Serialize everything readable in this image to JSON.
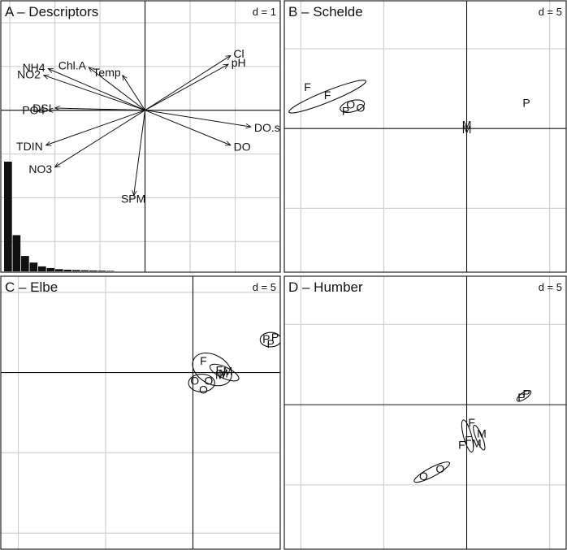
{
  "chart_data": [
    {
      "panel": "A",
      "type": "scatter",
      "title": "A – Descriptors",
      "scale_label": "d = 1",
      "xlim": [
        -3.2,
        3.0
      ],
      "ylim": [
        -3.7,
        2.5
      ],
      "grid": true,
      "vectors": [
        {
          "name": "Cl",
          "x": 1.9,
          "y": 1.25
        },
        {
          "name": "pH",
          "x": 1.85,
          "y": 1.05
        },
        {
          "name": "DO.sat",
          "x": 2.35,
          "y": -0.38
        },
        {
          "name": "DO",
          "x": 1.9,
          "y": -0.8
        },
        {
          "name": "SPM",
          "x": -0.25,
          "y": -1.95
        },
        {
          "name": "NO3",
          "x": -2.0,
          "y": -1.3
        },
        {
          "name": "TDIN",
          "x": -2.2,
          "y": -0.8
        },
        {
          "name": "PO4",
          "x": -2.15,
          "y": 0.0
        },
        {
          "name": "DSI",
          "x": -2.0,
          "y": 0.05
        },
        {
          "name": "NO2",
          "x": -2.25,
          "y": 0.8
        },
        {
          "name": "NH4",
          "x": -2.15,
          "y": 0.95
        },
        {
          "name": "Chl.A",
          "x": -1.25,
          "y": 0.98
        },
        {
          "name": "Temp",
          "x": -0.5,
          "y": 0.8
        }
      ],
      "eigenvalues": [
        1.0,
        0.33,
        0.14,
        0.08,
        0.045,
        0.03,
        0.02,
        0.015,
        0.012,
        0.01,
        0.008,
        0.006,
        0.004
      ]
    },
    {
      "panel": "B",
      "type": "scatter",
      "title": "B – Schelde",
      "scale_label": "d = 5",
      "xlim": [
        -11,
        6
      ],
      "ylim": [
        -9,
        8
      ],
      "grid": true,
      "points": [
        {
          "label": "F",
          "x": -9.6,
          "y": 2.6
        },
        {
          "label": "F",
          "x": -8.4,
          "y": 2.1
        },
        {
          "label": "O",
          "x": -7.0,
          "y": 1.5
        },
        {
          "label": "O",
          "x": -6.4,
          "y": 1.3
        },
        {
          "label": "P",
          "x": -7.3,
          "y": 1.1
        },
        {
          "label": "M",
          "x": 0.0,
          "y": 0.25
        },
        {
          "label": "M",
          "x": 0.0,
          "y": -0.05
        },
        {
          "label": "P",
          "x": 3.6,
          "y": 1.6
        }
      ],
      "ellipses": [
        {
          "x": -8.4,
          "y": 2.0,
          "rx": 2.5,
          "ry": 0.35,
          "angle": 22
        },
        {
          "x": -6.9,
          "y": 1.4,
          "rx": 0.75,
          "ry": 0.35,
          "angle": 15
        }
      ]
    },
    {
      "panel": "C",
      "type": "scatter",
      "title": "C – Elbe",
      "scale_label": "d = 5",
      "xlim": [
        -11,
        5
      ],
      "ylim": [
        -11,
        6
      ],
      "grid": true,
      "points": [
        {
          "label": "P",
          "x": 4.2,
          "y": 2.1
        },
        {
          "label": "P",
          "x": 4.7,
          "y": 2.2
        },
        {
          "label": "P",
          "x": 4.45,
          "y": 1.8
        },
        {
          "label": "F",
          "x": 0.6,
          "y": 0.75
        },
        {
          "label": "F",
          "x": 1.5,
          "y": 0.15
        },
        {
          "label": "M",
          "x": 2.0,
          "y": 0.1
        },
        {
          "label": "M",
          "x": 1.75,
          "y": -0.05
        },
        {
          "label": "M",
          "x": 1.55,
          "y": -0.15
        },
        {
          "label": "O",
          "x": 0.1,
          "y": -0.5
        },
        {
          "label": "O",
          "x": 0.9,
          "y": -0.5
        },
        {
          "label": "O",
          "x": 0.6,
          "y": -1.05
        }
      ],
      "ellipses": [
        {
          "x": 4.45,
          "y": 2.05,
          "rx": 0.6,
          "ry": 0.45,
          "angle": 0
        },
        {
          "x": 1.1,
          "y": 0.2,
          "rx": 1.2,
          "ry": 0.9,
          "angle": -30
        },
        {
          "x": 1.8,
          "y": 0.0,
          "rx": 0.9,
          "ry": 0.35,
          "angle": -25
        },
        {
          "x": 0.5,
          "y": -0.65,
          "rx": 0.75,
          "ry": 0.55,
          "angle": 0
        }
      ]
    },
    {
      "panel": "D",
      "type": "scatter",
      "title": "D – Humber",
      "scale_label": "d = 5",
      "xlim": [
        -11,
        6
      ],
      "ylim": [
        -9,
        8
      ],
      "grid": true,
      "points": [
        {
          "label": "P",
          "x": 3.6,
          "y": 0.7
        },
        {
          "label": "P",
          "x": 3.3,
          "y": 0.45
        },
        {
          "label": "F",
          "x": 0.3,
          "y": -1.1
        },
        {
          "label": "F",
          "x": 0.1,
          "y": -2.2
        },
        {
          "label": "F",
          "x": -0.3,
          "y": -2.5
        },
        {
          "label": "M",
          "x": 0.9,
          "y": -1.8
        },
        {
          "label": "M",
          "x": 0.6,
          "y": -2.4
        },
        {
          "label": "O",
          "x": -1.6,
          "y": -4.0
        },
        {
          "label": "O",
          "x": -2.6,
          "y": -4.45
        }
      ],
      "ellipses": [
        {
          "x": 3.45,
          "y": 0.55,
          "rx": 0.5,
          "ry": 0.2,
          "angle": 35
        },
        {
          "x": 0.05,
          "y": -1.95,
          "rx": 1.0,
          "ry": 0.25,
          "angle": -75
        },
        {
          "x": 0.75,
          "y": -2.05,
          "rx": 0.8,
          "ry": 0.2,
          "angle": -68
        },
        {
          "x": -2.1,
          "y": -4.2,
          "rx": 1.2,
          "ry": 0.28,
          "angle": 28
        }
      ]
    }
  ]
}
